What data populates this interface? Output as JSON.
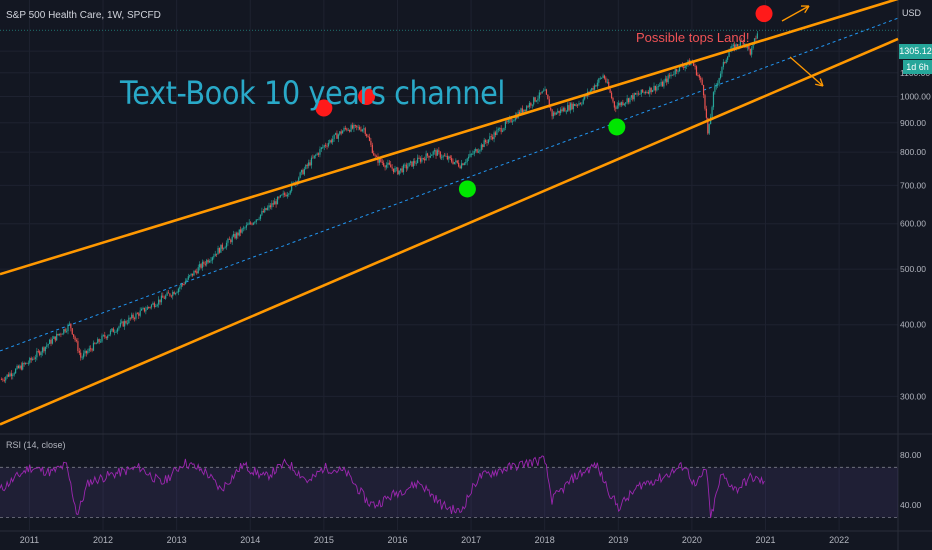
{
  "header": {
    "symbol_line": "S&P 500 Health Care, 1W, SPCFD"
  },
  "currency": "USD",
  "annotations": {
    "channel_text": "Text-Book 10 years channel",
    "tops_text": "Possible tops Land!"
  },
  "last_price_tag": "1305.12",
  "countdown_tag": "1d 6h",
  "rsi_panel": {
    "label": "RSI (14, close)",
    "upper_band": 70,
    "lower_band": 30,
    "axis_ticks": [
      "80.00",
      "40.00"
    ]
  },
  "colors": {
    "background": "#131722",
    "candle_up": "#26a69a",
    "candle_down": "#ef5350",
    "channel_line": "#ff9800",
    "midline": "#2196f3",
    "rsi_line": "#9c27b0",
    "marker_red": "#ff1a1a",
    "marker_green": "#00e600",
    "annotation_text": "#29a9c8"
  },
  "chart_data": {
    "type": "line",
    "title": "",
    "xlabel": "",
    "ylabel": "",
    "scale": "log",
    "x_ticks": [
      "2011",
      "2012",
      "2013",
      "2014",
      "2015",
      "2016",
      "2017",
      "2018",
      "2019",
      "2020",
      "2021",
      "2022"
    ],
    "y_ticks": [
      300,
      400,
      500,
      600,
      700,
      800,
      900,
      1000,
      1100,
      1200
    ],
    "y_tick_labels": [
      "300.00",
      "400.00",
      "500.00",
      "600.00",
      "700.00",
      "800.00",
      "900.00",
      "1000.00",
      "1100.00",
      "1200.00"
    ],
    "ylim": [
      260,
      1450
    ],
    "xlim": [
      2010.6,
      2022.8
    ],
    "series": [
      {
        "x": [
          2010.6,
          2011.0,
          2011.3,
          2011.55,
          2011.7,
          2012.0,
          2012.5,
          2013.0,
          2013.5,
          2014.0,
          2014.5,
          2015.0,
          2015.3,
          2015.55,
          2015.7,
          2016.0,
          2016.5,
          2016.85,
          2017.0,
          2017.5,
          2018.0,
          2018.1,
          2018.5,
          2018.8,
          2018.95,
          2019.2,
          2019.6,
          2019.8,
          2020.0,
          2020.15,
          2020.22,
          2020.3,
          2020.5,
          2020.7,
          2020.8,
          2020.9
        ],
        "values": [
          320,
          345,
          375,
          400,
          350,
          380,
          420,
          460,
          530,
          600,
          680,
          820,
          880,
          880,
          780,
          740,
          800,
          760,
          790,
          900,
          1020,
          930,
          980,
          1090,
          960,
          1000,
          1050,
          1120,
          1150,
          1040,
          850,
          1020,
          1200,
          1250,
          1190,
          1305.12
        ]
      }
    ],
    "channel": {
      "upper": {
        "x": [
          2010.6,
          2022.8
        ],
        "values": [
          490,
          1480
        ]
      },
      "lower": {
        "x": [
          2010.6,
          2022.8
        ],
        "values": [
          268,
          1260
        ]
      },
      "mid": {
        "x": [
          2010.6,
          2022.8
        ],
        "values": [
          360,
          1370
        ]
      }
    },
    "markers": [
      {
        "x": 2015.0,
        "y": 955,
        "color": "red"
      },
      {
        "x": 2015.58,
        "y": 1000,
        "color": "red"
      },
      {
        "x": 2020.98,
        "y": 1395,
        "color": "red"
      },
      {
        "x": 2016.95,
        "y": 690,
        "color": "green"
      },
      {
        "x": 2018.98,
        "y": 885,
        "color": "green"
      }
    ],
    "last_value": 1305.12,
    "rsi": {
      "ylim": [
        20,
        95
      ],
      "x": [
        2010.6,
        2011.0,
        2011.3,
        2011.5,
        2011.65,
        2011.8,
        2012.1,
        2012.5,
        2012.8,
        2013.1,
        2013.4,
        2013.6,
        2013.9,
        2014.2,
        2014.5,
        2014.8,
        2015.0,
        2015.3,
        2015.6,
        2015.7,
        2016.0,
        2016.3,
        2016.6,
        2016.85,
        2017.1,
        2017.4,
        2017.8,
        2018.0,
        2018.1,
        2018.4,
        2018.7,
        2018.9,
        2019.0,
        2019.3,
        2019.6,
        2019.9,
        2020.05,
        2020.2,
        2020.25,
        2020.4,
        2020.6,
        2020.8,
        2021.0
      ],
      "values": [
        52,
        70,
        66,
        72,
        32,
        58,
        64,
        70,
        57,
        74,
        66,
        52,
        72,
        62,
        74,
        58,
        70,
        66,
        42,
        40,
        50,
        58,
        40,
        34,
        62,
        68,
        74,
        76,
        44,
        62,
        72,
        48,
        38,
        56,
        62,
        72,
        54,
        70,
        28,
        64,
        52,
        62,
        58
      ]
    }
  }
}
